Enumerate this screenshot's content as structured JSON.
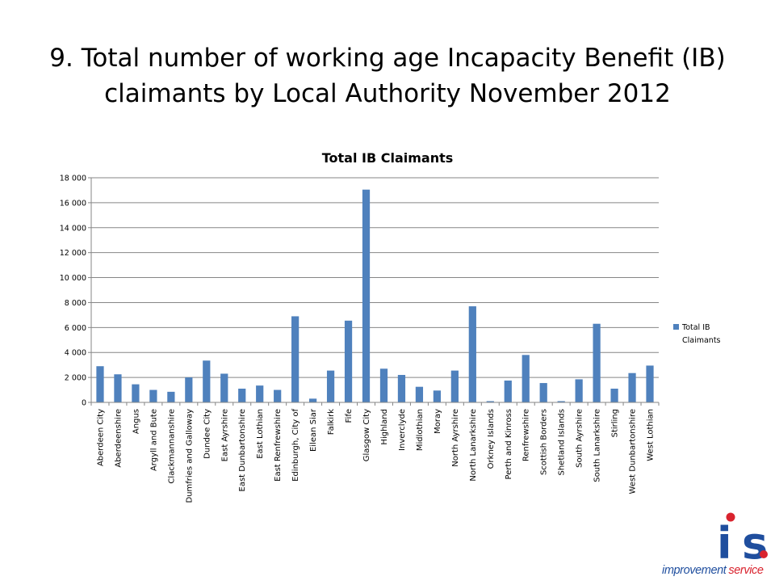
{
  "slide": {
    "title_line1": "9. Total number of working age Incapacity Benefit (IB)",
    "title_line2": "claimants by Local Authority November 2012"
  },
  "logo": {
    "mark": "is.",
    "name_part1": "improvement",
    "name_part2": "service",
    "colors": {
      "blue": "#1f4e9e",
      "red": "#d9232e"
    }
  },
  "chart_data": {
    "type": "bar",
    "title": "Total IB Claimants",
    "legend_position": "right",
    "grid": true,
    "bar_color": "#4f81bd",
    "ylim": [
      0,
      18000
    ],
    "ytick_values": [
      0,
      2000,
      4000,
      6000,
      8000,
      10000,
      12000,
      14000,
      16000,
      18000
    ],
    "ytick_labels": [
      "0",
      "2 000",
      "4 000",
      "6 000",
      "8 000",
      "10 000",
      "12 000",
      "14 000",
      "16 000",
      "18 000"
    ],
    "categories": [
      "Aberdeen City",
      "Aberdeenshire",
      "Angus",
      "Argyll and Bute",
      "Clackmannanshire",
      "Dumfries and Galloway",
      "Dundee City",
      "East Ayrshire",
      "East Dunbartonshire",
      "East Lothian",
      "East Renfrewshire",
      "Edinburgh, City of",
      "Eilean Siar",
      "Falkirk",
      "Fife",
      "Glasgow City",
      "Highland",
      "Inverclyde",
      "Midlothian",
      "Moray",
      "North Ayrshire",
      "North Lanarkshire",
      "Orkney Islands",
      "Perth and Kinross",
      "Renfrewshire",
      "Scottish Borders",
      "Shetland Islands",
      "South Ayrshire",
      "South Lanarkshire",
      "Stirling",
      "West Dunbartonshire",
      "West Lothian"
    ],
    "series": [
      {
        "name": "Total IB Claimants",
        "values": [
          2900,
          2250,
          1450,
          1000,
          850,
          2000,
          3350,
          2300,
          1100,
          1350,
          1000,
          6900,
          300,
          2550,
          6550,
          17050,
          2700,
          2200,
          1250,
          950,
          2550,
          7700,
          100,
          1750,
          3800,
          1550,
          100,
          1850,
          6300,
          1100,
          2350,
          2950
        ]
      }
    ]
  }
}
